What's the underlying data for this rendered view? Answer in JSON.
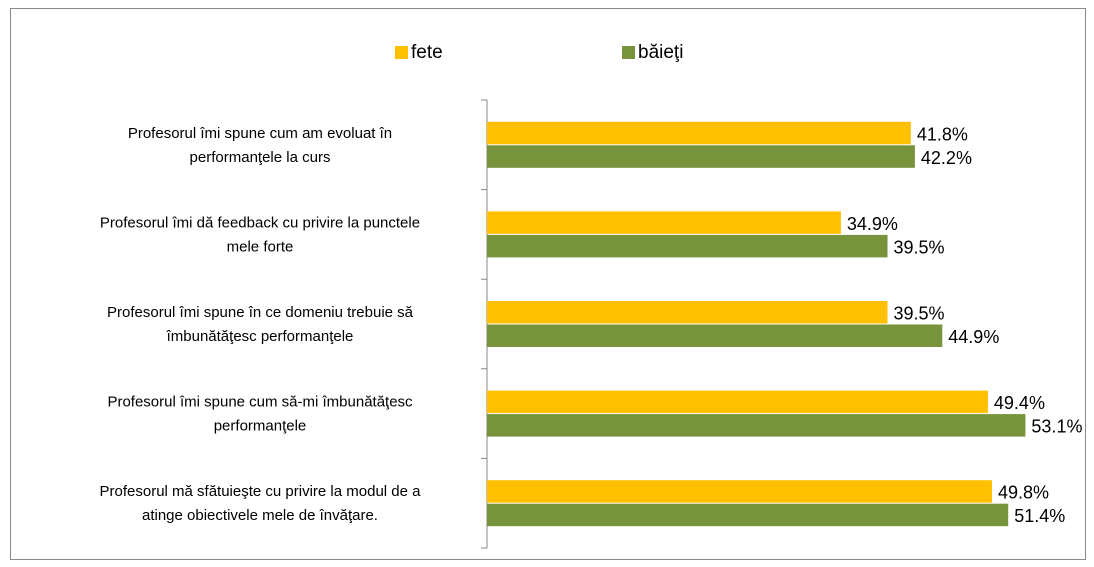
{
  "chart_data": {
    "type": "hbar",
    "categories": [
      [
        "Profesorul îmi spune cum am evoluat în",
        "performanţele la curs"
      ],
      [
        "Profesorul îmi dă feedback cu privire la punctele",
        "mele forte"
      ],
      [
        "Profesorul îmi spune în ce domeniu trebuie să",
        "îmbunătăţesc performanţele"
      ],
      [
        "Profesorul îmi spune cum să-mi îmbunătăţesc",
        "performanţele"
      ],
      [
        "Profesorul mă sfătuieşte cu privire la modul de a",
        "atinge obiectivele mele de învăţare."
      ]
    ],
    "series": [
      {
        "name": "fete",
        "color": "#ffc000",
        "values": [
          41.8,
          34.9,
          39.5,
          49.4,
          49.8
        ],
        "value_labels": [
          "41.8%",
          "34.9%",
          "39.5%",
          "49.4%",
          "49.8%"
        ]
      },
      {
        "name": "băieţi",
        "color": "#77933c",
        "values": [
          42.2,
          39.5,
          44.9,
          53.1,
          51.4
        ],
        "value_labels": [
          "42.2%",
          "39.5%",
          "44.9%",
          "53.1%",
          "51.4%"
        ]
      }
    ],
    "legend": "top"
  }
}
